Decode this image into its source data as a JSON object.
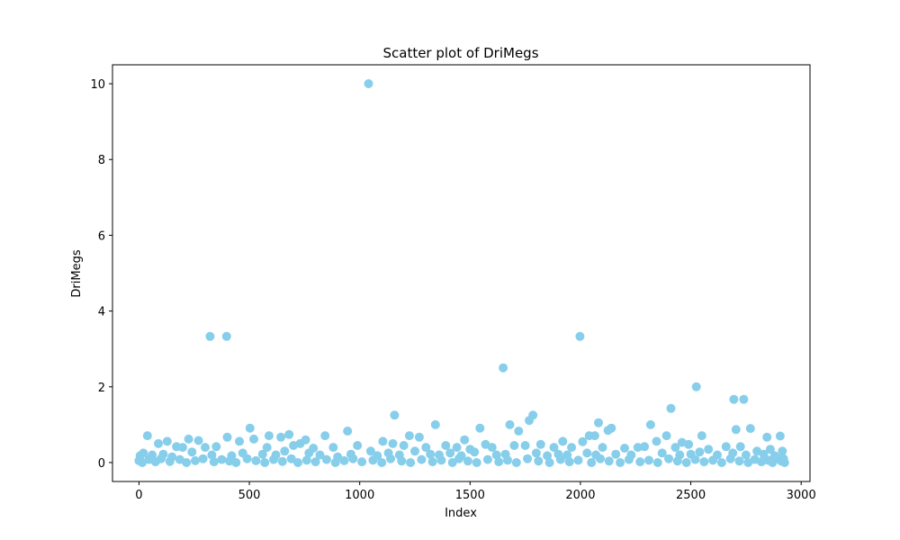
{
  "chart_data": {
    "type": "scatter",
    "title": "Scatter plot of DriMegs",
    "xlabel": "Index",
    "ylabel": "DriMegs",
    "xlim": [
      -120,
      3040
    ],
    "ylim": [
      -0.5,
      10.5
    ],
    "xticks": [
      0,
      500,
      1000,
      1500,
      2000,
      2500,
      3000
    ],
    "yticks": [
      0,
      2,
      4,
      6,
      8,
      10
    ],
    "grid": false,
    "legend": "none",
    "point_color": "#87CEEB",
    "series": [
      {
        "points": [
          [
            1040,
            10.0
          ],
          [
            322,
            3.33
          ],
          [
            397,
            3.33
          ],
          [
            1998,
            3.33
          ],
          [
            1650,
            2.5
          ],
          [
            2525,
            2.0
          ],
          [
            2695,
            1.67
          ],
          [
            2740,
            1.67
          ],
          [
            2410,
            1.43
          ],
          [
            1158,
            1.25
          ],
          [
            1785,
            1.25
          ],
          [
            1768,
            1.11
          ],
          [
            1343,
            1.0
          ],
          [
            1680,
            1.0
          ],
          [
            2082,
            1.05
          ],
          [
            2318,
            1.0
          ],
          [
            503,
            0.91
          ],
          [
            1545,
            0.91
          ],
          [
            2140,
            0.91
          ],
          [
            2705,
            0.87
          ],
          [
            2770,
            0.9
          ],
          [
            2125,
            0.85
          ],
          [
            945,
            0.83
          ],
          [
            1720,
            0.83
          ],
          [
            38,
            0.71
          ],
          [
            589,
            0.71
          ],
          [
            680,
            0.74
          ],
          [
            843,
            0.71
          ],
          [
            1225,
            0.71
          ],
          [
            1270,
            0.67
          ],
          [
            2040,
            0.71
          ],
          [
            2065,
            0.71
          ],
          [
            2390,
            0.71
          ],
          [
            2550,
            0.71
          ],
          [
            2845,
            0.67
          ],
          [
            2905,
            0.7
          ],
          [
            400,
            0.67
          ],
          [
            643,
            0.67
          ],
          [
            520,
            0.62
          ],
          [
            225,
            0.62
          ],
          [
            270,
            0.58
          ],
          [
            128,
            0.56
          ],
          [
            455,
            0.56
          ],
          [
            755,
            0.6
          ],
          [
            1105,
            0.56
          ],
          [
            1475,
            0.6
          ],
          [
            1920,
            0.56
          ],
          [
            2345,
            0.56
          ],
          [
            2460,
            0.53
          ],
          [
            2490,
            0.48
          ],
          [
            88,
            0.5
          ],
          [
            170,
            0.42
          ],
          [
            198,
            0.4
          ],
          [
            300,
            0.4
          ],
          [
            350,
            0.42
          ],
          [
            580,
            0.4
          ],
          [
            700,
            0.45
          ],
          [
            730,
            0.5
          ],
          [
            790,
            0.38
          ],
          [
            880,
            0.4
          ],
          [
            990,
            0.45
          ],
          [
            1050,
            0.3
          ],
          [
            1150,
            0.5
          ],
          [
            1200,
            0.45
          ],
          [
            1300,
            0.4
          ],
          [
            1390,
            0.45
          ],
          [
            1440,
            0.4
          ],
          [
            1500,
            0.35
          ],
          [
            1570,
            0.48
          ],
          [
            1600,
            0.4
          ],
          [
            1700,
            0.45
          ],
          [
            1750,
            0.45
          ],
          [
            1820,
            0.48
          ],
          [
            1880,
            0.4
          ],
          [
            1960,
            0.4
          ],
          [
            2010,
            0.55
          ],
          [
            2100,
            0.4
          ],
          [
            2200,
            0.38
          ],
          [
            2260,
            0.4
          ],
          [
            2290,
            0.42
          ],
          [
            2430,
            0.4
          ],
          [
            2580,
            0.35
          ],
          [
            2660,
            0.42
          ],
          [
            2725,
            0.42
          ],
          [
            2800,
            0.3
          ],
          [
            2860,
            0.35
          ],
          [
            2915,
            0.3
          ],
          [
            5,
            0.18
          ],
          [
            20,
            0.25
          ],
          [
            60,
            0.2
          ],
          [
            110,
            0.22
          ],
          [
            150,
            0.15
          ],
          [
            240,
            0.28
          ],
          [
            330,
            0.2
          ],
          [
            420,
            0.18
          ],
          [
            470,
            0.25
          ],
          [
            560,
            0.22
          ],
          [
            620,
            0.2
          ],
          [
            660,
            0.3
          ],
          [
            770,
            0.25
          ],
          [
            820,
            0.2
          ],
          [
            900,
            0.15
          ],
          [
            960,
            0.22
          ],
          [
            1080,
            0.18
          ],
          [
            1130,
            0.25
          ],
          [
            1180,
            0.2
          ],
          [
            1250,
            0.3
          ],
          [
            1320,
            0.22
          ],
          [
            1360,
            0.2
          ],
          [
            1410,
            0.25
          ],
          [
            1460,
            0.18
          ],
          [
            1520,
            0.28
          ],
          [
            1620,
            0.2
          ],
          [
            1660,
            0.22
          ],
          [
            1800,
            0.25
          ],
          [
            1850,
            0.18
          ],
          [
            1900,
            0.22
          ],
          [
            1940,
            0.2
          ],
          [
            2030,
            0.25
          ],
          [
            2070,
            0.2
          ],
          [
            2160,
            0.22
          ],
          [
            2230,
            0.2
          ],
          [
            2370,
            0.25
          ],
          [
            2450,
            0.2
          ],
          [
            2500,
            0.22
          ],
          [
            2540,
            0.28
          ],
          [
            2620,
            0.2
          ],
          [
            2690,
            0.25
          ],
          [
            2750,
            0.2
          ],
          [
            2830,
            0.22
          ],
          [
            2880,
            0.18
          ],
          [
            2920,
            0.1
          ],
          [
            0,
            0.05
          ],
          [
            15,
            0.0
          ],
          [
            45,
            0.08
          ],
          [
            75,
            0.02
          ],
          [
            100,
            0.1
          ],
          [
            140,
            0.03
          ],
          [
            185,
            0.08
          ],
          [
            215,
            0.0
          ],
          [
            255,
            0.05
          ],
          [
            290,
            0.1
          ],
          [
            340,
            0.02
          ],
          [
            375,
            0.08
          ],
          [
            410,
            0.04
          ],
          [
            440,
            0.0
          ],
          [
            490,
            0.1
          ],
          [
            530,
            0.05
          ],
          [
            570,
            0.0
          ],
          [
            610,
            0.08
          ],
          [
            650,
            0.03
          ],
          [
            690,
            0.1
          ],
          [
            720,
            0.0
          ],
          [
            760,
            0.06
          ],
          [
            800,
            0.02
          ],
          [
            850,
            0.08
          ],
          [
            890,
            0.0
          ],
          [
            930,
            0.05
          ],
          [
            970,
            0.1
          ],
          [
            1010,
            0.02
          ],
          [
            1060,
            0.06
          ],
          [
            1100,
            0.0
          ],
          [
            1140,
            0.1
          ],
          [
            1190,
            0.04
          ],
          [
            1230,
            0.0
          ],
          [
            1280,
            0.08
          ],
          [
            1330,
            0.02
          ],
          [
            1370,
            0.06
          ],
          [
            1420,
            0.0
          ],
          [
            1450,
            0.1
          ],
          [
            1490,
            0.04
          ],
          [
            1530,
            0.0
          ],
          [
            1580,
            0.08
          ],
          [
            1630,
            0.02
          ],
          [
            1670,
            0.06
          ],
          [
            1710,
            0.0
          ],
          [
            1760,
            0.1
          ],
          [
            1810,
            0.04
          ],
          [
            1860,
            0.0
          ],
          [
            1910,
            0.08
          ],
          [
            1950,
            0.02
          ],
          [
            1990,
            0.06
          ],
          [
            2050,
            0.0
          ],
          [
            2090,
            0.1
          ],
          [
            2130,
            0.04
          ],
          [
            2180,
            0.0
          ],
          [
            2220,
            0.08
          ],
          [
            2270,
            0.02
          ],
          [
            2310,
            0.06
          ],
          [
            2350,
            0.0
          ],
          [
            2400,
            0.1
          ],
          [
            2440,
            0.04
          ],
          [
            2480,
            0.0
          ],
          [
            2520,
            0.08
          ],
          [
            2560,
            0.02
          ],
          [
            2600,
            0.06
          ],
          [
            2640,
            0.0
          ],
          [
            2680,
            0.1
          ],
          [
            2720,
            0.04
          ],
          [
            2760,
            0.0
          ],
          [
            2790,
            0.08
          ],
          [
            2820,
            0.02
          ],
          [
            2850,
            0.06
          ],
          [
            2870,
            0.0
          ],
          [
            2895,
            0.1
          ],
          [
            2910,
            0.04
          ],
          [
            2925,
            0.0
          ]
        ]
      }
    ]
  }
}
